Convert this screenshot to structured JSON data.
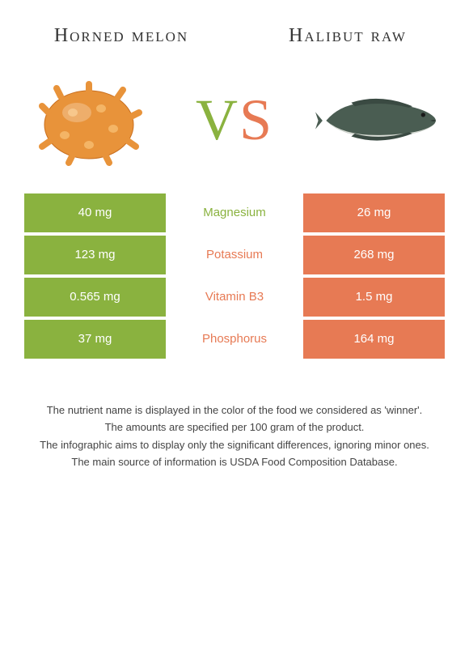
{
  "titles": {
    "left": "Horned melon",
    "right": "Halibut raw"
  },
  "vs": {
    "v": "V",
    "s": "S"
  },
  "colors": {
    "left": "#8ab23f",
    "right": "#e77a54",
    "background": "#ffffff",
    "text": "#333333"
  },
  "images": {
    "left_name": "horned-melon",
    "right_name": "halibut-fish"
  },
  "rows": [
    {
      "left": "40 mg",
      "label": "Magnesium",
      "right": "26 mg",
      "winner": "left"
    },
    {
      "left": "123 mg",
      "label": "Potassium",
      "right": "268 mg",
      "winner": "right"
    },
    {
      "left": "0.565 mg",
      "label": "Vitamin B3",
      "right": "1.5 mg",
      "winner": "right"
    },
    {
      "left": "37 mg",
      "label": "Phosphorus",
      "right": "164 mg",
      "winner": "right"
    }
  ],
  "footnotes": [
    "The nutrient name is displayed in the color of the food we considered as 'winner'.",
    "The amounts are specified per 100 gram of the product.",
    "The infographic aims to display only the significant differences, ignoring minor ones.",
    "The main source of information is USDA Food Composition Database."
  ]
}
